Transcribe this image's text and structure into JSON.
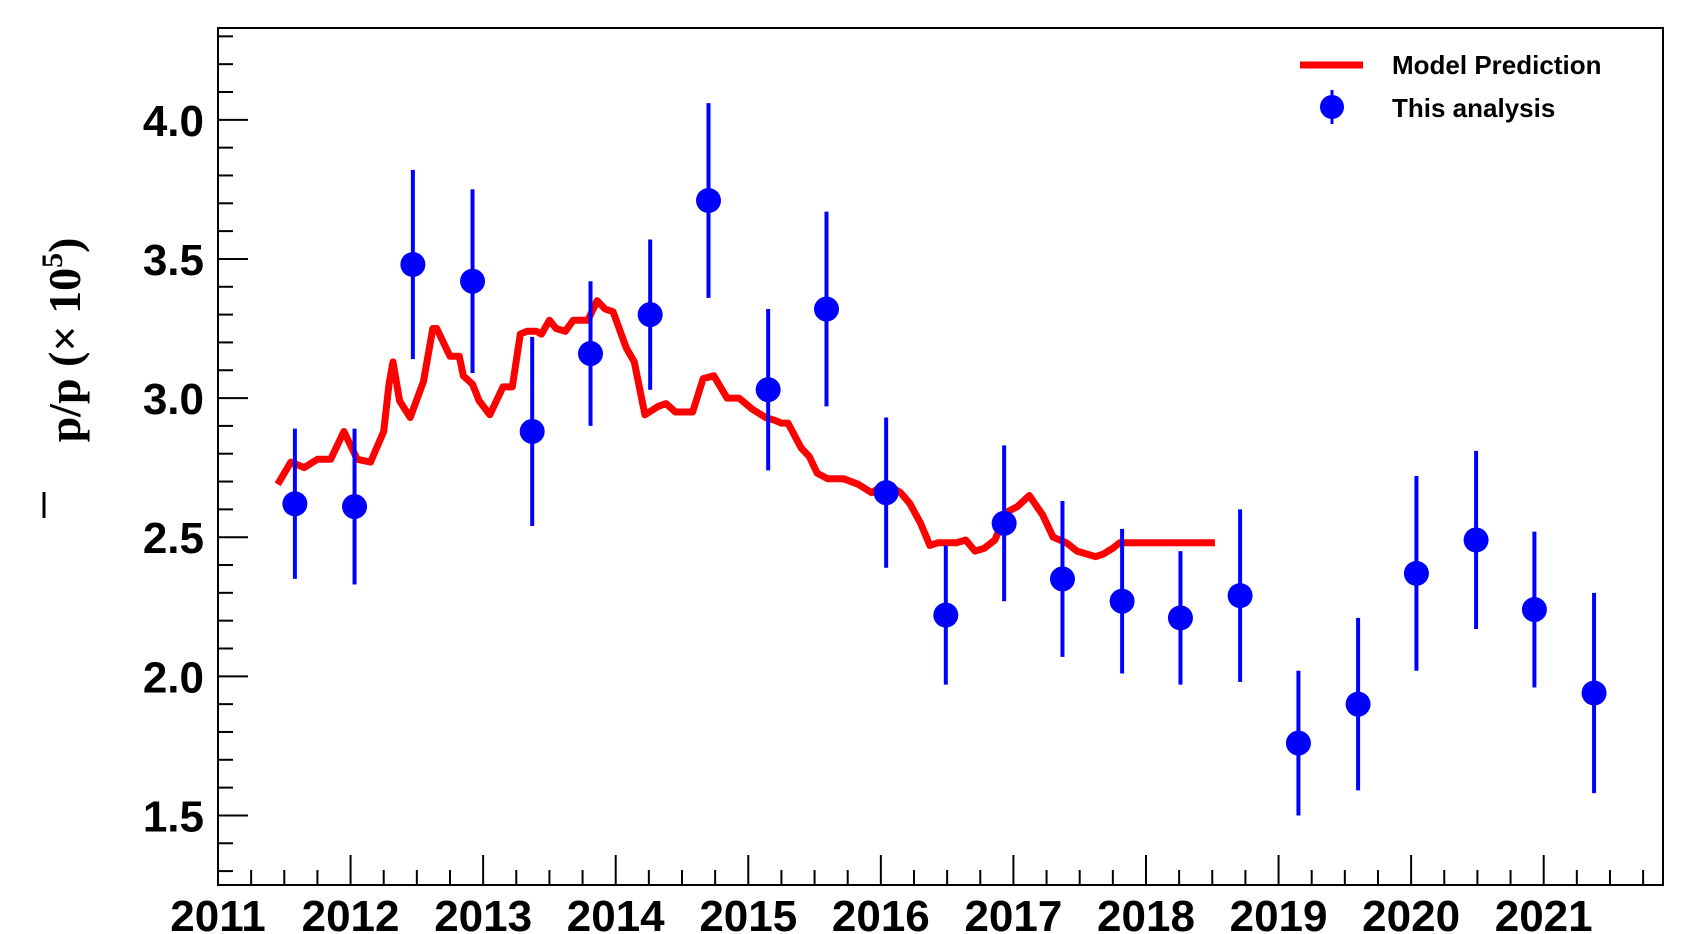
{
  "chart_data": {
    "type": "scatter",
    "xlabel": "",
    "ylabel": "p̄/p (× 10⁵)",
    "ylabel_parts": {
      "main": "p/p (× 10",
      "sup": "5",
      "close": ")"
    },
    "xlim": [
      2011.0,
      2021.9
    ],
    "ylim": [
      1.25,
      4.33
    ],
    "y_ticks": [
      "1.5",
      "2.0",
      "2.5",
      "3.0",
      "3.5",
      "4.0"
    ],
    "x_ticks": [
      "2011",
      "2012",
      "2013",
      "2014",
      "2015",
      "2016",
      "2017",
      "2018",
      "2019",
      "2020",
      "2021"
    ],
    "grid": false,
    "legend_position": "top-right",
    "series": [
      {
        "name": "Model Prediction",
        "kind": "line",
        "color": "#ff0000",
        "x": [
          2011.45,
          2011.55,
          2011.65,
          2011.75,
          2011.85,
          2011.95,
          2012.05,
          2012.15,
          2012.25,
          2012.29,
          2012.32,
          2012.37,
          2012.45,
          2012.55,
          2012.62,
          2012.65,
          2012.75,
          2012.82,
          2012.85,
          2012.92,
          2012.97,
          2013.05,
          2013.15,
          2013.22,
          2013.28,
          2013.33,
          2013.4,
          2013.44,
          2013.5,
          2013.55,
          2013.62,
          2013.68,
          2013.74,
          2013.79,
          2013.86,
          2013.92,
          2013.98,
          2014.08,
          2014.14,
          2014.22,
          2014.32,
          2014.38,
          2014.45,
          2014.52,
          2014.58,
          2014.66,
          2014.74,
          2014.84,
          2014.93,
          2015.03,
          2015.13,
          2015.2,
          2015.25,
          2015.3,
          2015.4,
          2015.46,
          2015.52,
          2015.6,
          2015.72,
          2015.83,
          2015.93,
          2016.0,
          2016.08,
          2016.15,
          2016.22,
          2016.3,
          2016.37,
          2016.43,
          2016.5,
          2016.57,
          2016.64,
          2016.71,
          2016.78,
          2016.86,
          2016.95,
          2017.03,
          2017.12,
          2017.22,
          2017.3,
          2017.4,
          2017.48,
          2017.55,
          2017.62,
          2017.68,
          2017.75,
          2017.8,
          2017.86,
          2017.95,
          2018.05,
          2018.12,
          2018.2,
          2018.3,
          2018.38,
          2018.45,
          2018.52
        ],
        "y": [
          2.69,
          2.77,
          2.75,
          2.78,
          2.78,
          2.88,
          2.78,
          2.77,
          2.88,
          3.05,
          3.13,
          2.99,
          2.93,
          3.06,
          3.25,
          3.25,
          3.15,
          3.15,
          3.08,
          3.05,
          2.99,
          2.94,
          3.04,
          3.04,
          3.23,
          3.24,
          3.24,
          3.23,
          3.28,
          3.25,
          3.24,
          3.28,
          3.28,
          3.28,
          3.35,
          3.32,
          3.31,
          3.18,
          3.13,
          2.94,
          2.97,
          2.98,
          2.95,
          2.95,
          2.95,
          3.07,
          3.08,
          3.0,
          3.0,
          2.96,
          2.93,
          2.92,
          2.91,
          2.91,
          2.82,
          2.79,
          2.73,
          2.71,
          2.71,
          2.69,
          2.66,
          2.68,
          2.68,
          2.66,
          2.62,
          2.55,
          2.47,
          2.48,
          2.48,
          2.48,
          2.49,
          2.45,
          2.46,
          2.49,
          2.59,
          2.61,
          2.65,
          2.58,
          2.5,
          2.48,
          2.45,
          2.44,
          2.43,
          2.44,
          2.46,
          2.48,
          2.48,
          2.48,
          2.48,
          2.48,
          2.48,
          2.48,
          2.48,
          2.48,
          2.48
        ]
      },
      {
        "name": "This analysis",
        "kind": "points_with_errors",
        "color": "#0000ff",
        "x": [
          2011.58,
          2012.03,
          2012.47,
          2012.92,
          2013.37,
          2013.81,
          2014.26,
          2014.7,
          2015.15,
          2015.59,
          2016.04,
          2016.49,
          2016.93,
          2017.37,
          2017.82,
          2018.26,
          2018.71,
          2019.15,
          2019.6,
          2020.04,
          2020.49,
          2020.93,
          2021.38
        ],
        "y": [
          2.62,
          2.61,
          3.48,
          3.42,
          2.88,
          3.16,
          3.3,
          3.71,
          3.03,
          3.32,
          2.66,
          2.22,
          2.55,
          2.35,
          2.27,
          2.21,
          2.29,
          1.76,
          1.9,
          2.37,
          2.49,
          2.24,
          1.94
        ],
        "yerr": [
          0.27,
          0.28,
          0.34,
          0.33,
          0.34,
          0.26,
          0.27,
          0.35,
          0.29,
          0.35,
          0.27,
          0.25,
          0.28,
          0.28,
          0.26,
          0.24,
          0.31,
          0.26,
          0.31,
          0.35,
          0.32,
          0.28,
          0.36
        ]
      }
    ]
  },
  "legend": {
    "items": [
      {
        "label": "Model Prediction"
      },
      {
        "label": "This analysis"
      }
    ]
  }
}
